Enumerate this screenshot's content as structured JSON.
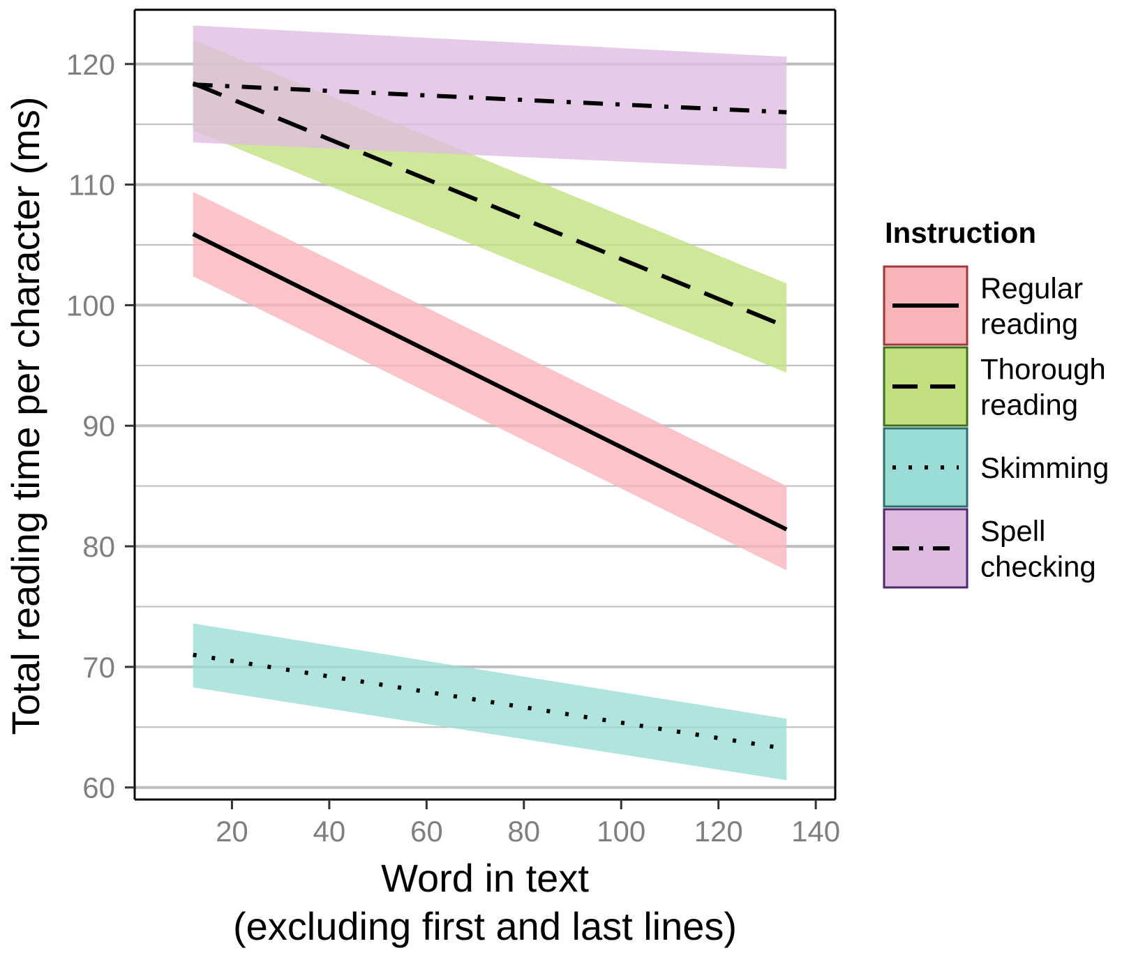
{
  "chart_data": {
    "type": "line",
    "title": "",
    "xlabel": [
      "Word in text",
      "(excluding first and last lines)"
    ],
    "ylabel": "Total reading time per character (ms)",
    "xlim": [
      0,
      144
    ],
    "ylim": [
      59,
      124.5
    ],
    "x_ticks": [
      20,
      40,
      60,
      80,
      100,
      120,
      140
    ],
    "y_ticks": [
      60,
      70,
      80,
      90,
      100,
      110,
      120
    ],
    "y_minor_gridlines": [
      65,
      75,
      85,
      95,
      105,
      115
    ],
    "grid": "horizontal",
    "legend": {
      "title": "Instruction",
      "placement": "right"
    },
    "series": [
      {
        "name": [
          "Regular",
          "reading"
        ],
        "linestyle": "solid",
        "fill": "#F8B4B8",
        "border": "#A03A3A",
        "x": [
          12,
          134
        ],
        "y": [
          105.9,
          81.4
        ],
        "ci_upper": [
          109.4,
          85.0
        ],
        "ci_lower": [
          102.4,
          78.0
        ]
      },
      {
        "name": [
          "Thorough",
          "reading"
        ],
        "linestyle": "longdash",
        "fill": "#C2E07F",
        "border": "#3F6F1E",
        "x": [
          12,
          134
        ],
        "y": [
          118.4,
          98.2
        ],
        "ci_upper": [
          122.0,
          101.8
        ],
        "ci_lower": [
          114.5,
          94.4
        ]
      },
      {
        "name": [
          "Skimming"
        ],
        "linestyle": "dotted",
        "fill": "#9ADDD6",
        "border": "#2E6F6C",
        "x": [
          12,
          134
        ],
        "y": [
          71.0,
          63.2
        ],
        "ci_upper": [
          73.6,
          65.7
        ],
        "ci_lower": [
          68.3,
          60.6
        ]
      },
      {
        "name": [
          "Spell",
          "checking"
        ],
        "linestyle": "dashdot",
        "fill": "#DEBCE2",
        "border": "#4A2A6B",
        "x": [
          12,
          134
        ],
        "y": [
          118.3,
          116.0
        ],
        "ci_upper": [
          123.2,
          120.6
        ],
        "ci_lower": [
          113.5,
          111.3
        ]
      }
    ]
  }
}
